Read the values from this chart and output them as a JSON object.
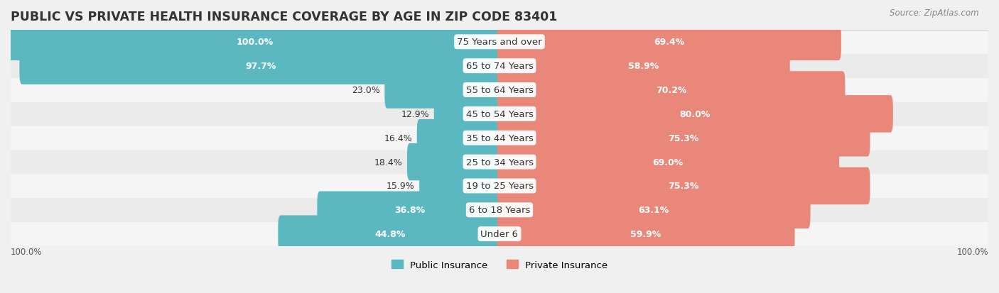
{
  "title": "PUBLIC VS PRIVATE HEALTH INSURANCE COVERAGE BY AGE IN ZIP CODE 83401",
  "source": "Source: ZipAtlas.com",
  "categories": [
    "Under 6",
    "6 to 18 Years",
    "19 to 25 Years",
    "25 to 34 Years",
    "35 to 44 Years",
    "45 to 54 Years",
    "55 to 64 Years",
    "65 to 74 Years",
    "75 Years and over"
  ],
  "public_values": [
    44.8,
    36.8,
    15.9,
    18.4,
    16.4,
    12.9,
    23.0,
    97.7,
    100.0
  ],
  "private_values": [
    59.9,
    63.1,
    75.3,
    69.0,
    75.3,
    80.0,
    70.2,
    58.9,
    69.4
  ],
  "public_color": "#5BB8C1",
  "private_color": "#E8877A",
  "bg_color": "#F0F0F0",
  "bar_bg_color": "#FFFFFF",
  "row_bg_even": "#F5F5F5",
  "row_bg_odd": "#EBEBEB",
  "title_color": "#333333",
  "label_color": "#333333",
  "value_color_dark": "#333333",
  "value_color_light": "#FFFFFF",
  "max_val": 100.0,
  "bar_height": 0.55,
  "label_fontsize": 9.5,
  "value_fontsize": 9.0,
  "title_fontsize": 12.5
}
